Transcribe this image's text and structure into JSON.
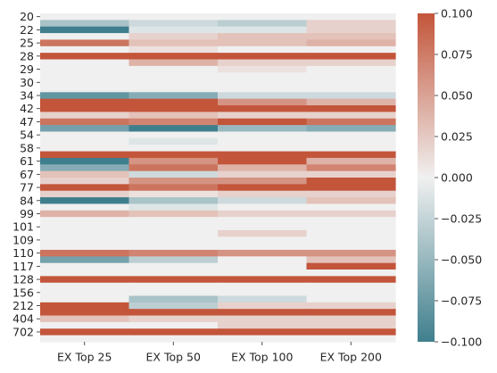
{
  "chart_data": {
    "type": "heatmap",
    "title": "",
    "xlabel": "",
    "ylabel": "",
    "x_categories": [
      "EX Top 25",
      "EX Top 50",
      "EX Top 100",
      "EX Top 200"
    ],
    "y_tick_labels": [
      "20",
      "22",
      "25",
      "28",
      "29",
      "30",
      "34",
      "42",
      "47",
      "54",
      "58",
      "61",
      "67",
      "77",
      "84",
      "99",
      "101",
      "109",
      "110",
      "117",
      "128",
      "156",
      "212",
      "404",
      "702"
    ],
    "y_tick_rows": [
      0,
      2,
      4,
      6,
      8,
      10,
      12,
      14,
      16,
      18,
      20,
      22,
      24,
      26,
      28,
      30,
      32,
      34,
      36,
      38,
      40,
      42,
      44,
      46,
      48
    ],
    "colorbar": {
      "vmin": -0.1,
      "vmax": 0.1,
      "tick_values": [
        0.1,
        0.075,
        0.05,
        0.025,
        0.0,
        -0.025,
        -0.05,
        -0.075,
        -0.1
      ],
      "tick_labels": [
        "0.100",
        "0.075",
        "0.050",
        "0.025",
        "0.000",
        "−0.025",
        "−0.050",
        "−0.075",
        "−0.100"
      ],
      "colormap": {
        "low": "#3f7f8d",
        "mid": "#f0f0f0",
        "high": "#c3553a"
      }
    },
    "n_rows": 50,
    "rows": [
      [
        0,
        0,
        0,
        0
      ],
      [
        -0.04,
        -0.02,
        -0.03,
        0.02
      ],
      [
        -0.1,
        -0.01,
        -0.01,
        0.02
      ],
      [
        0,
        0.02,
        0.03,
        0.03
      ],
      [
        0.08,
        0.03,
        0.03,
        0.04
      ],
      [
        0,
        0.01,
        0,
        0
      ],
      [
        0.1,
        0.1,
        0.1,
        0.1
      ],
      [
        0,
        0.04,
        0.02,
        0.02
      ],
      [
        0,
        0,
        0.01,
        0
      ],
      [
        0,
        0,
        0,
        0
      ],
      [
        0,
        0,
        0,
        0
      ],
      [
        0,
        0,
        0,
        0
      ],
      [
        -0.08,
        -0.06,
        -0.02,
        -0.02
      ],
      [
        0.1,
        0.1,
        0.06,
        0.04
      ],
      [
        0.1,
        0.1,
        0.1,
        0.1
      ],
      [
        0.02,
        0.03,
        0.02,
        0.02
      ],
      [
        0.08,
        0.07,
        0.1,
        0.08
      ],
      [
        -0.07,
        -0.1,
        -0.05,
        -0.06
      ],
      [
        0,
        0,
        0,
        0
      ],
      [
        0,
        -0.01,
        0,
        0
      ],
      [
        0,
        0,
        0,
        0
      ],
      [
        0.1,
        0.1,
        0.1,
        0.1
      ],
      [
        -0.1,
        0.06,
        0.1,
        0.04
      ],
      [
        -0.06,
        0.08,
        0.04,
        0.07
      ],
      [
        0.03,
        -0.02,
        0.02,
        0.02
      ],
      [
        0.02,
        0.06,
        0.06,
        0.1
      ],
      [
        0.1,
        0.08,
        0.1,
        0.1
      ],
      [
        0.02,
        0.01,
        0.02,
        0.02
      ],
      [
        -0.1,
        -0.04,
        -0.02,
        0.03
      ],
      [
        0,
        -0.01,
        0,
        0
      ],
      [
        0.04,
        0.03,
        0.02,
        0.02
      ],
      [
        0,
        0,
        0,
        0
      ],
      [
        0,
        0,
        0,
        0
      ],
      [
        0,
        0,
        0.02,
        0
      ],
      [
        0,
        0,
        0,
        0
      ],
      [
        0,
        0,
        0,
        0
      ],
      [
        0.08,
        0.07,
        0.06,
        0.06
      ],
      [
        -0.07,
        -0.03,
        0,
        0.03
      ],
      [
        0,
        0,
        0,
        0.1
      ],
      [
        0,
        0,
        0,
        0
      ],
      [
        0.1,
        0.1,
        0.1,
        0.1
      ],
      [
        0,
        0,
        0,
        0
      ],
      [
        0,
        0,
        0,
        0
      ],
      [
        0,
        -0.04,
        -0.02,
        0
      ],
      [
        0.1,
        -0.03,
        0.02,
        0.02
      ],
      [
        0.1,
        0.1,
        0.1,
        0.1
      ],
      [
        0.03,
        0.02,
        0.02,
        0.02
      ],
      [
        0,
        0,
        0.02,
        0.02
      ],
      [
        0.1,
        0.1,
        0.1,
        0.1
      ],
      [
        0,
        0,
        0,
        0
      ]
    ]
  }
}
